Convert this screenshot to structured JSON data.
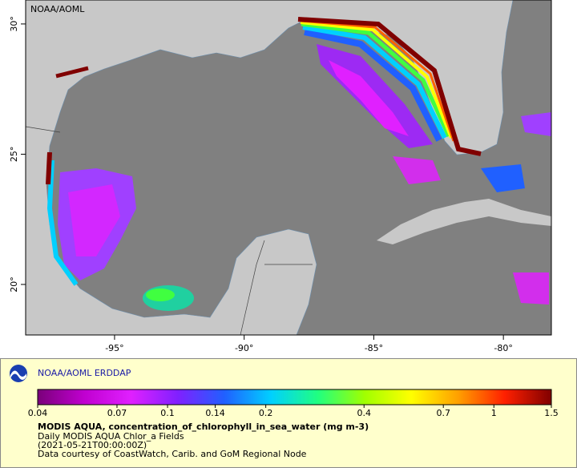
{
  "map": {
    "watermark": "NOAA/AOML",
    "xlim": [
      -98.43,
      -78.15
    ],
    "ylim": [
      18.06,
      30.92
    ],
    "xticks": [
      {
        "value": -95,
        "label": "-95°"
      },
      {
        "value": -90,
        "label": "-90°"
      },
      {
        "value": -85,
        "label": "-85°"
      },
      {
        "value": -80,
        "label": "-80°"
      }
    ],
    "yticks": [
      {
        "value": 20,
        "label": "20°"
      },
      {
        "value": 25,
        "label": "25°"
      },
      {
        "value": 30,
        "label": "30°"
      }
    ]
  },
  "legend": {
    "brand": "NOAA/AOML ERDDAP",
    "title": "MODIS AQUA, concentration_of_chlorophyll_in_sea_water (mg m-3)",
    "lines": [
      "Daily MODIS AQUA Chlor_a Fields",
      "(2021-05-21T00:00:00Z)",
      "Data courtesy of CoastWatch, Carib. and GoM Regional Node"
    ],
    "colorbar": {
      "log": true,
      "range": [
        0.04,
        1.5
      ],
      "ticks": [
        0.04,
        0.07,
        0.1,
        0.14,
        0.2,
        0.4,
        0.7,
        1,
        1.5
      ],
      "colors": [
        "#7a007a",
        "#c000d0",
        "#e020ff",
        "#8020ff",
        "#2060ff",
        "#00d0ff",
        "#20ff80",
        "#a0ff00",
        "#ffff00",
        "#ffa000",
        "#ff2000",
        "#800000"
      ]
    }
  }
}
